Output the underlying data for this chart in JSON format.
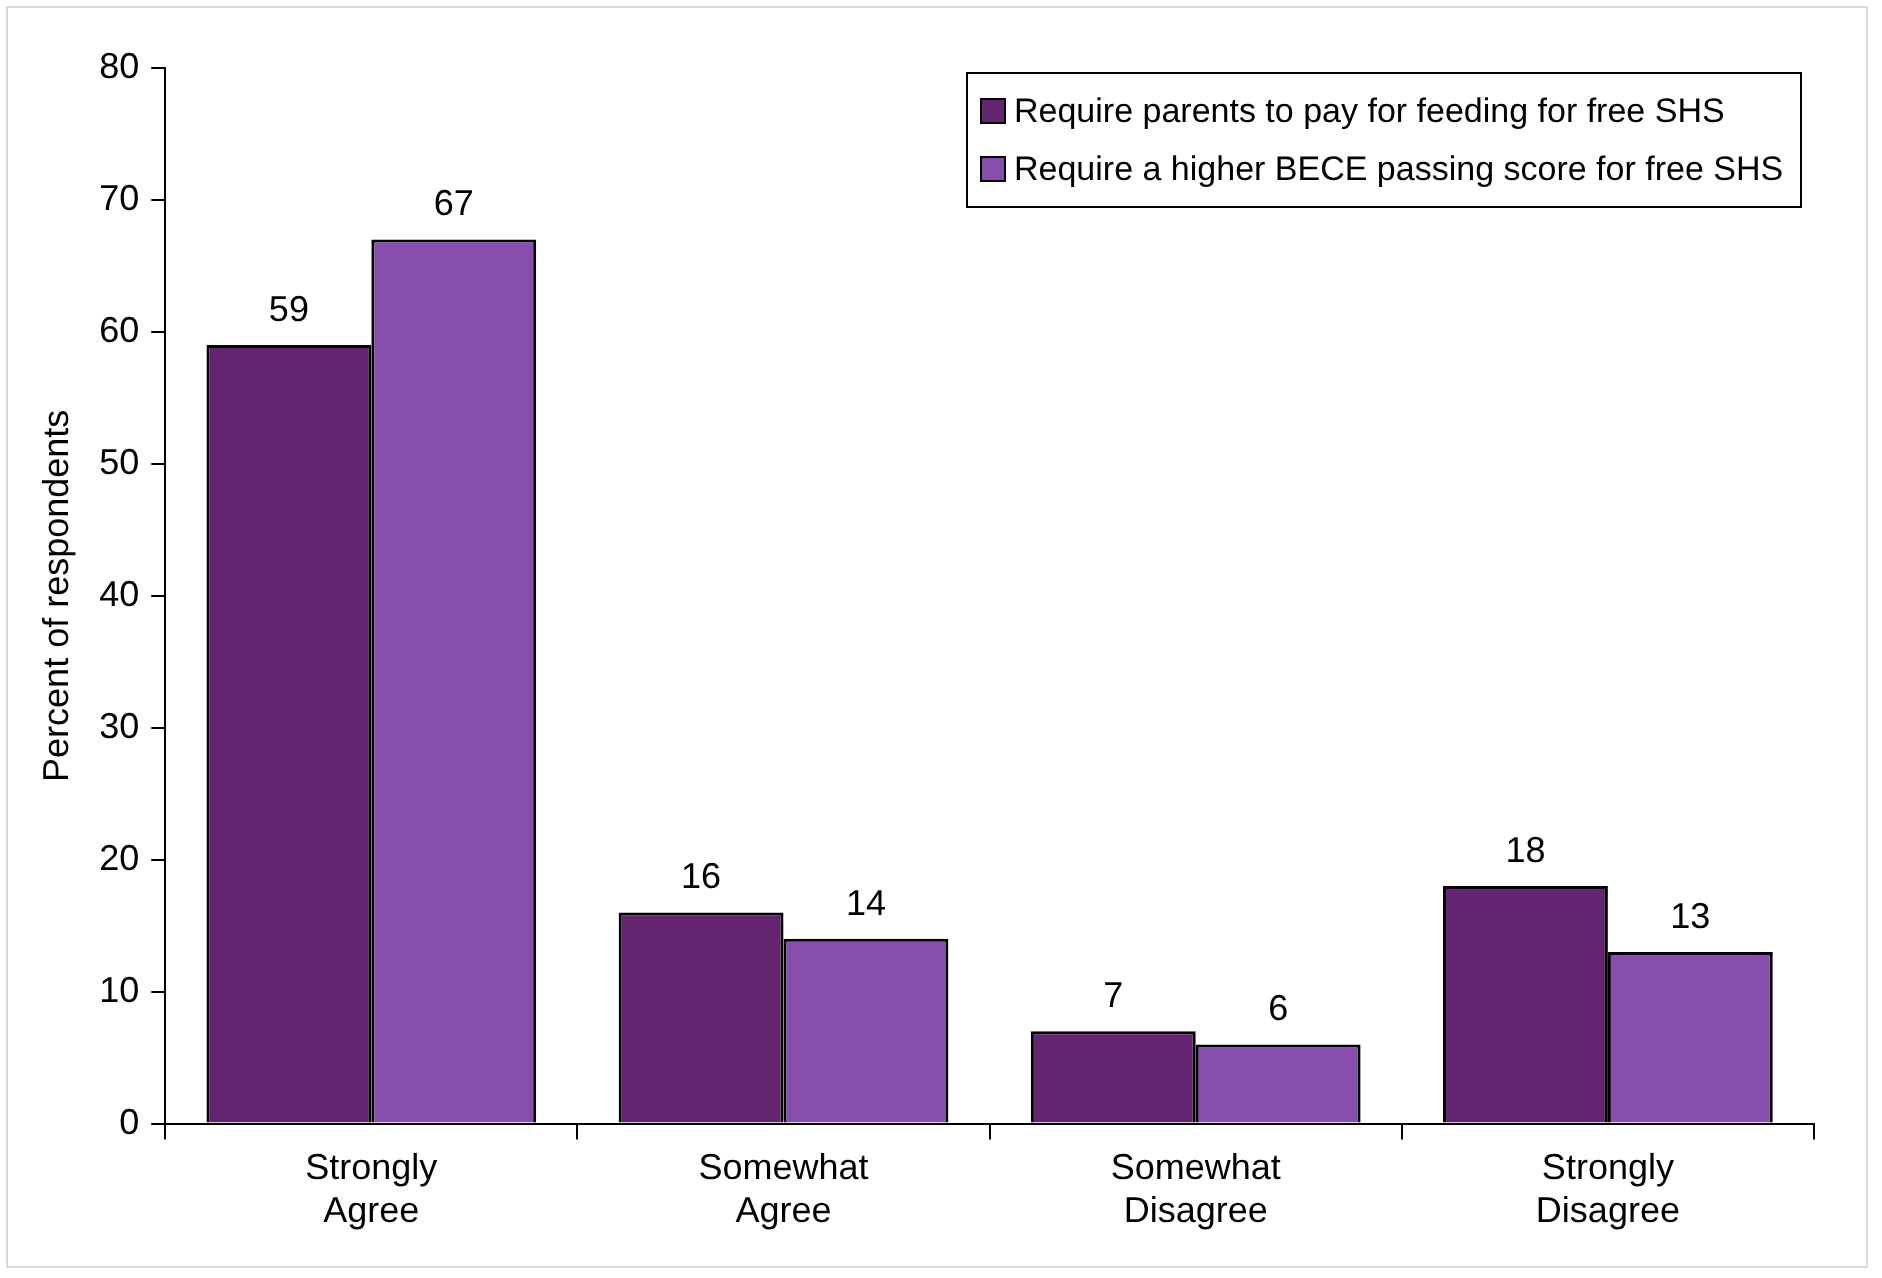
{
  "chart_data": {
    "type": "bar",
    "ylabel": "Percent of respondents",
    "categories": [
      "Strongly Agree",
      "Somewhat Agree",
      "Somewhat Disagree",
      "Strongly Disagree"
    ],
    "series": [
      {
        "name": "Require parents to pay for feeding for free SHS",
        "color": "#632570",
        "values": [
          59,
          16,
          7,
          18
        ]
      },
      {
        "name": "Require a higher BECE passing score for free SHS",
        "color": "#874fab",
        "values": [
          67,
          14,
          6,
          13
        ]
      }
    ],
    "ylim": [
      0,
      80
    ],
    "yticks": [
      0,
      10,
      20,
      30,
      40,
      50,
      60,
      70,
      80
    ],
    "grid": false,
    "legend": "top right",
    "data_labels": true
  }
}
